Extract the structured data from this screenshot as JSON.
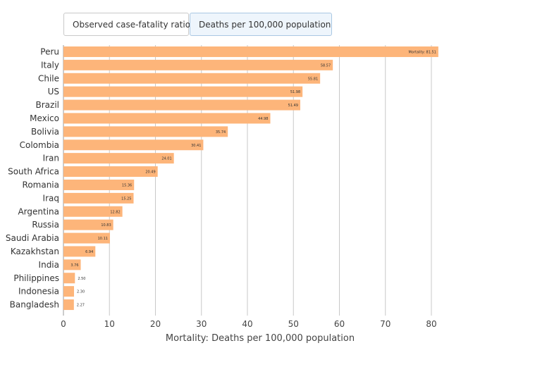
{
  "tabs": [
    {
      "label": "Observed case-fatality ratio",
      "active": false
    },
    {
      "label": "Deaths per 100,000 population",
      "active": true
    }
  ],
  "colors": {
    "bar": "#fdb57a",
    "grid": "#c8c8c8",
    "active_tab": "#eef5fc"
  },
  "chart_data": {
    "type": "bar",
    "orientation": "horizontal",
    "title": "",
    "xlabel": "Mortality: Deaths per 100,000 population",
    "ylabel": "",
    "xlim": [
      0,
      80
    ],
    "xticks": [
      0,
      10,
      20,
      30,
      40,
      50,
      60,
      70,
      80
    ],
    "grid": true,
    "categories": [
      "Peru",
      "Italy",
      "Chile",
      "US",
      "Brazil",
      "Mexico",
      "Bolivia",
      "Colombia",
      "Iran",
      "South Africa",
      "Romania",
      "Iraq",
      "Argentina",
      "Russia",
      "Saudi Arabia",
      "Kazakhstan",
      "India",
      "Philippines",
      "Indonesia",
      "Bangladesh"
    ],
    "values": [
      81.51,
      58.57,
      55.81,
      51.98,
      51.49,
      44.98,
      35.74,
      30.41,
      24.01,
      20.49,
      15.36,
      15.25,
      12.82,
      10.83,
      10.11,
      6.94,
      3.76,
      2.5,
      2.3,
      2.27
    ],
    "value_labels": [
      "Mortality: 81.51",
      "58.57",
      "55.81",
      "51.98",
      "51.49",
      "44.98",
      "35.74",
      "30.41",
      "24.01",
      "20.49",
      "15.36",
      "15.25",
      "12.82",
      "10.83",
      "10.11",
      "6.94",
      "3.76",
      "2.50",
      "2.30",
      "2.27"
    ]
  }
}
